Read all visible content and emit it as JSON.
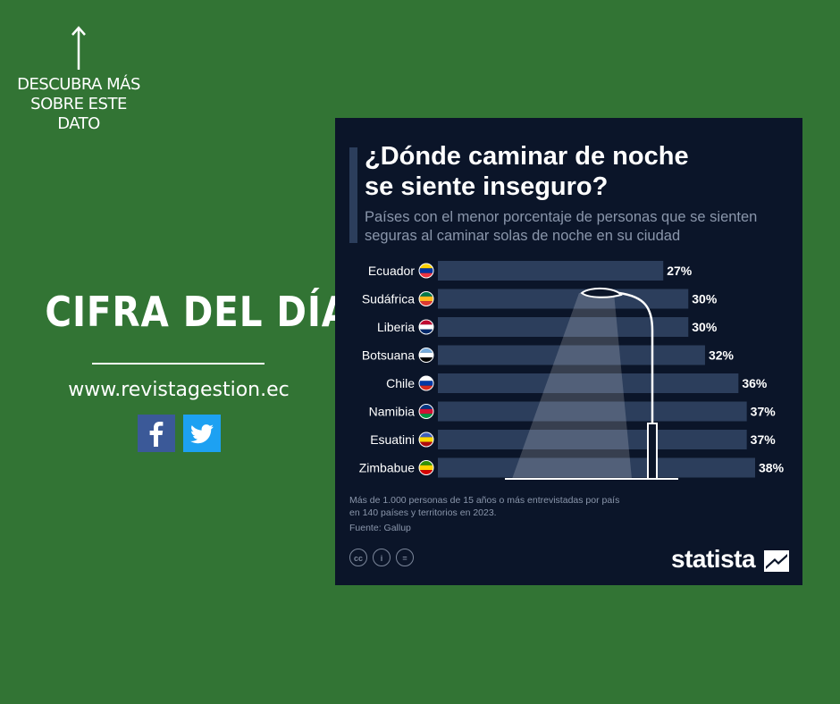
{
  "promo": {
    "cta_lines": [
      "DESCUBRA MÁS",
      "SOBRE ESTE",
      "DATO"
    ],
    "headline": "CIFRA DEL DÍA",
    "website": "www.revistagestion.ec"
  },
  "icons": {
    "arrow": "arrow-up-icon",
    "facebook": "facebook-icon",
    "twitter": "twitter-icon"
  },
  "colors": {
    "background": "#327434",
    "card": "#0b1529",
    "bar": "#2c3e5c",
    "text_muted": "#8a96ab"
  },
  "card": {
    "footnote_lines": [
      "Más de 1.000 personas de 15 años o más entrevistadas por país",
      "en 140 países y territorios en 2023."
    ],
    "source": "Fuente: Gallup",
    "brand": "statista"
  },
  "chart_data": {
    "type": "bar",
    "orientation": "horizontal",
    "title_lines": [
      "¿Dónde caminar de noche",
      "se siente inseguro?"
    ],
    "subtitle_lines": [
      "Países con el menor porcentaje de personas que se sienten",
      "seguras al caminar solas de noche en su ciudad"
    ],
    "categories": [
      "Ecuador",
      "Sudáfrica",
      "Liberia",
      "Botsuana",
      "Chile",
      "Namibia",
      "Esuatini",
      "Zimbabue"
    ],
    "values": [
      27,
      30,
      30,
      32,
      36,
      37,
      37,
      38
    ],
    "value_labels": [
      "27%",
      "30%",
      "30%",
      "32%",
      "36%",
      "37%",
      "37%",
      "38%"
    ],
    "unit": "%",
    "xlim": [
      0,
      38
    ],
    "grid": false,
    "legend": "none"
  }
}
